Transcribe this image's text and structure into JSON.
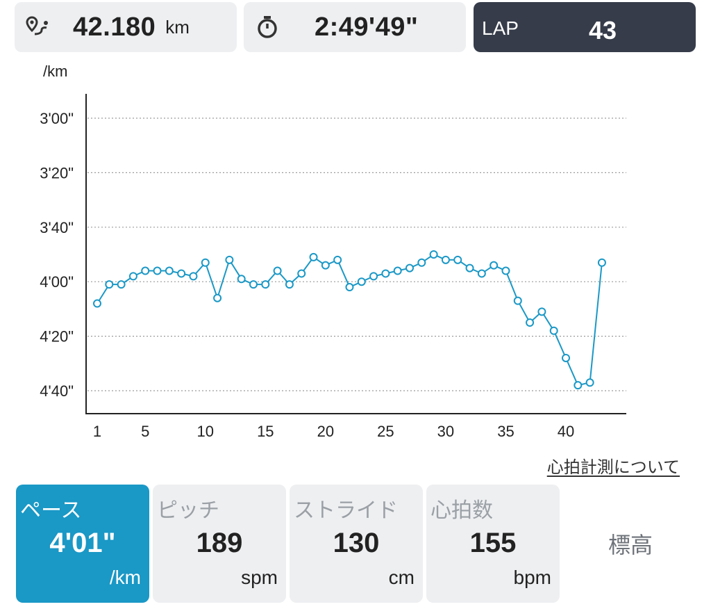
{
  "header": {
    "distance": {
      "value": "42.180",
      "unit": "km",
      "icon": "route-pin-icon"
    },
    "time": {
      "value": "2:49'49\"",
      "icon": "stopwatch-icon"
    },
    "lap": {
      "label": "LAP",
      "value": "43"
    }
  },
  "chart_data": {
    "type": "line",
    "ylabel": "/km",
    "y_unit": "seconds per km",
    "ylim": [
      170,
      290
    ],
    "y_inverted": true,
    "yticks": [
      {
        "v": 180,
        "label": "3'00\""
      },
      {
        "v": 200,
        "label": "3'20\""
      },
      {
        "v": 220,
        "label": "3'40\""
      },
      {
        "v": 240,
        "label": "4'00\""
      },
      {
        "v": 260,
        "label": "4'20\""
      },
      {
        "v": 280,
        "label": "4'40\""
      }
    ],
    "xlim": [
      0.9,
      44.5
    ],
    "xticks": [
      1,
      5,
      10,
      15,
      20,
      25,
      30,
      35,
      40
    ],
    "grid": "horizontal-dotted",
    "color": "#1a98c6",
    "x": [
      1,
      2,
      3,
      4,
      5,
      6,
      7,
      8,
      9,
      10,
      11,
      12,
      13,
      14,
      15,
      16,
      17,
      18,
      19,
      20,
      21,
      22,
      23,
      24,
      25,
      26,
      27,
      28,
      29,
      30,
      31,
      32,
      33,
      34,
      35,
      36,
      37,
      38,
      39,
      40,
      41,
      42,
      43
    ],
    "values": [
      248,
      241,
      241,
      238,
      236,
      236,
      236,
      237,
      238,
      233,
      246,
      232,
      239,
      241,
      241,
      236,
      241,
      237,
      231,
      234,
      232,
      242,
      240,
      238,
      237,
      236,
      235,
      233,
      230,
      232,
      232,
      235,
      237,
      234,
      236,
      247,
      255,
      251,
      258,
      268,
      278,
      277,
      233
    ]
  },
  "footer_link": "心拍計測について",
  "metrics": {
    "pace": {
      "label": "ペース",
      "value": "4'01\"",
      "unit": "/km"
    },
    "pitch": {
      "label": "ピッチ",
      "value": "189",
      "unit": "spm"
    },
    "stride": {
      "label": "ストライド",
      "value": "130",
      "unit": "cm"
    },
    "heart": {
      "label": "心拍数",
      "value": "155",
      "unit": "bpm"
    },
    "elevation": {
      "label": "標高"
    }
  },
  "colors": {
    "accent": "#1a98c6",
    "lap_bg": "#363c4a",
    "tile_bg": "#eeeff1"
  }
}
